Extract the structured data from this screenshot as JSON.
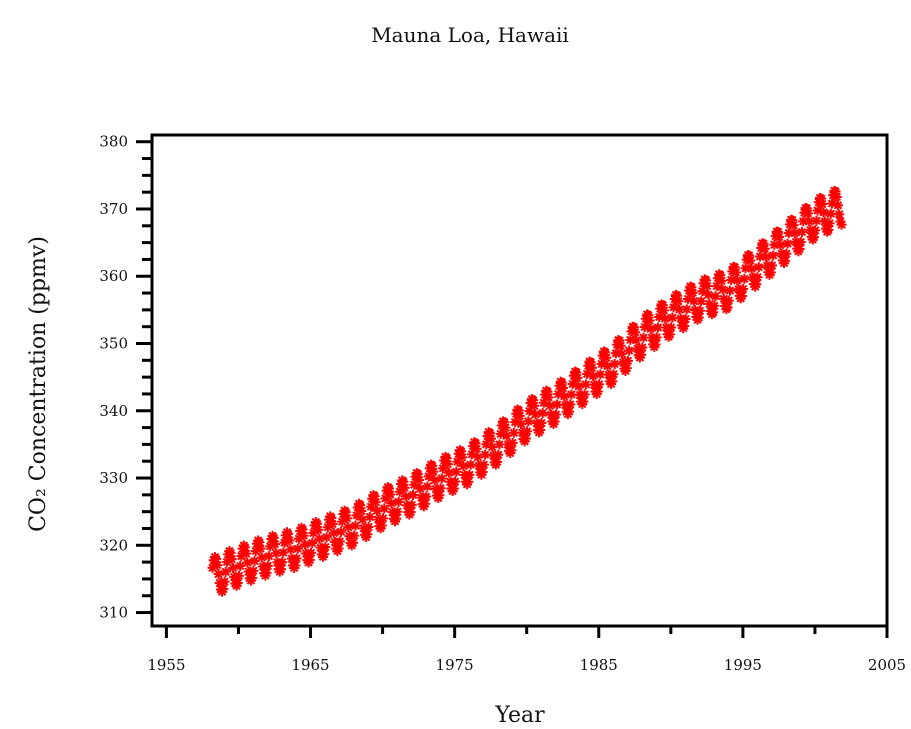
{
  "chart_data": {
    "type": "scatter",
    "title": "Mauna Loa, Hawaii",
    "xlabel": "Year",
    "ylabel": "CO₂ Concentration (ppmv)",
    "xlim": [
      1954,
      2005
    ],
    "ylim": [
      308,
      381
    ],
    "x_ticks": [
      1955,
      1965,
      1975,
      1985,
      1995,
      2005
    ],
    "x_tick_labels": [
      "1955",
      "1965",
      "1975",
      "1985",
      "1995",
      "2005"
    ],
    "y_ticks": [
      310,
      320,
      330,
      340,
      350,
      360,
      370,
      380
    ],
    "y_tick_labels": [
      "310",
      "320",
      "330",
      "340",
      "350",
      "360",
      "370",
      "380"
    ],
    "grid": false,
    "marker": "asterisk",
    "color": "#ff0000",
    "series": [
      {
        "x_start": 1958.2,
        "x_end": 2001.9,
        "step": 0.0833,
        "seasonal_amplitude": 2.8,
        "trend_points": [
          {
            "x": 1958.2,
            "y": 315.3
          },
          {
            "x": 1960,
            "y": 316.9
          },
          {
            "x": 1962,
            "y": 318.4
          },
          {
            "x": 1964,
            "y": 319.5
          },
          {
            "x": 1966,
            "y": 321.2
          },
          {
            "x": 1968,
            "y": 322.9
          },
          {
            "x": 1970,
            "y": 325.5
          },
          {
            "x": 1972,
            "y": 327.5
          },
          {
            "x": 1974,
            "y": 330.0
          },
          {
            "x": 1976,
            "y": 332.0
          },
          {
            "x": 1978,
            "y": 335.0
          },
          {
            "x": 1980,
            "y": 338.5
          },
          {
            "x": 1982,
            "y": 341.0
          },
          {
            "x": 1984,
            "y": 344.0
          },
          {
            "x": 1986,
            "y": 347.0
          },
          {
            "x": 1988,
            "y": 351.0
          },
          {
            "x": 1990,
            "y": 354.0
          },
          {
            "x": 1992,
            "y": 356.5
          },
          {
            "x": 1994,
            "y": 358.0
          },
          {
            "x": 1996,
            "y": 361.5
          },
          {
            "x": 1998,
            "y": 365.0
          },
          {
            "x": 2000,
            "y": 368.5
          },
          {
            "x": 2001.9,
            "y": 370.5
          }
        ]
      }
    ]
  }
}
